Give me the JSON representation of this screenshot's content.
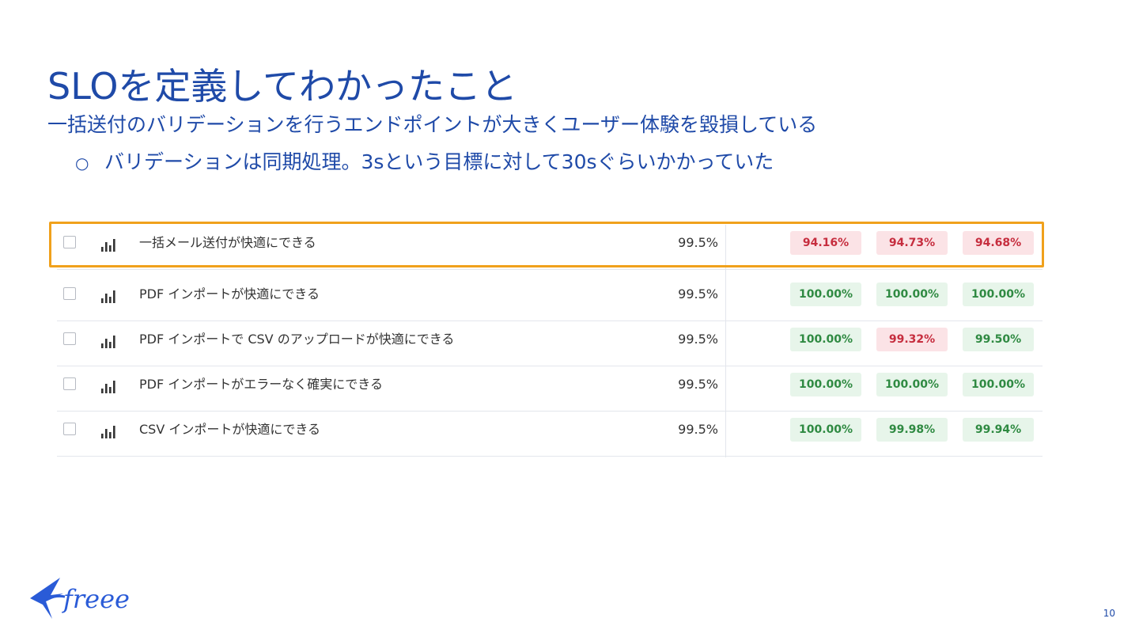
{
  "slide": {
    "title": "SLOを定義してわかったこと",
    "bullet_main": "一括送付のバリデーションを行うエンドポイントが大きくユーザー体験を毀損している",
    "bullet_sub_marker": "○",
    "bullet_sub": "バリデーションは同期処理。3sという目標に対して30sぐらいかかっていた",
    "page_number": "10",
    "logo_text": "freee"
  },
  "colors": {
    "title": "#1f4aa8",
    "highlight_border": "#f0a11c",
    "badge_green_bg": "#e7f5ea",
    "badge_green_text": "#2f8a42",
    "badge_red_bg": "#fbe3e6",
    "badge_red_text": "#c62d3e"
  },
  "slo_table": {
    "rows": [
      {
        "name": "一括メール送付が快適にできる",
        "target": "99.5%",
        "values": [
          {
            "text": "94.16%",
            "status": "red"
          },
          {
            "text": "94.73%",
            "status": "red"
          },
          {
            "text": "94.68%",
            "status": "red"
          }
        ]
      },
      {
        "name": "PDF インポートが快適にできる",
        "target": "99.5%",
        "values": [
          {
            "text": "100.00%",
            "status": "green"
          },
          {
            "text": "100.00%",
            "status": "green"
          },
          {
            "text": "100.00%",
            "status": "green"
          }
        ]
      },
      {
        "name": "PDF インポートで CSV のアップロードが快適にできる",
        "target": "99.5%",
        "values": [
          {
            "text": "100.00%",
            "status": "green"
          },
          {
            "text": "99.32%",
            "status": "red"
          },
          {
            "text": "99.50%",
            "status": "green"
          }
        ]
      },
      {
        "name": "PDF インポートがエラーなく確実にできる",
        "target": "99.5%",
        "values": [
          {
            "text": "100.00%",
            "status": "green"
          },
          {
            "text": "100.00%",
            "status": "green"
          },
          {
            "text": "100.00%",
            "status": "green"
          }
        ]
      },
      {
        "name": "CSV インポートが快適にできる",
        "target": "99.5%",
        "values": [
          {
            "text": "100.00%",
            "status": "green"
          },
          {
            "text": "99.98%",
            "status": "green"
          },
          {
            "text": "99.94%",
            "status": "green"
          }
        ]
      }
    ]
  }
}
